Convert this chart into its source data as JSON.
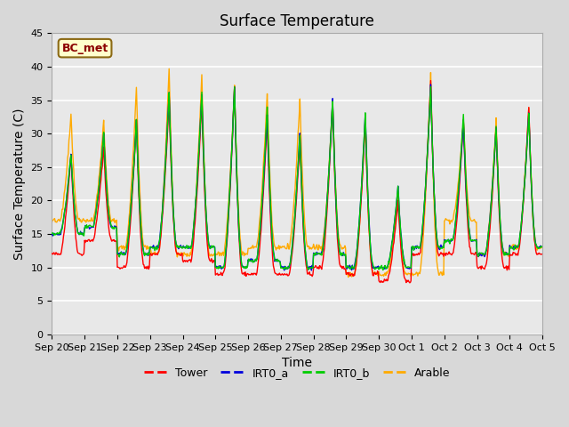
{
  "title": "Surface Temperature",
  "ylabel": "Surface Temperature (C)",
  "xlabel": "Time",
  "annotation": "BC_met",
  "ylim": [
    0,
    45
  ],
  "n_days": 15,
  "xtick_labels": [
    "Sep 20",
    "Sep 21",
    "Sep 22",
    "Sep 23",
    "Sep 24",
    "Sep 25",
    "Sep 26",
    "Sep 27",
    "Sep 28",
    "Sep 29",
    "Sep 30",
    "Oct 1",
    "Oct 2",
    "Oct 3",
    "Oct 4",
    "Oct 5"
  ],
  "ytick_values": [
    0,
    5,
    10,
    15,
    20,
    25,
    30,
    35,
    40,
    45
  ],
  "series_colors": {
    "Tower": "#ff0000",
    "IRT0_a": "#0000dd",
    "IRT0_b": "#00cc00",
    "Arable": "#ffaa00"
  },
  "background_color": "#d8d8d8",
  "plot_bg_color": "#e8e8e8",
  "title_fontsize": 12,
  "axis_label_fontsize": 10,
  "tick_fontsize": 8,
  "line_width": 1.0,
  "day_peaks_tower": [
    27,
    28,
    32,
    35,
    35,
    37,
    32,
    29,
    35,
    32,
    20,
    38,
    32,
    31,
    34
  ],
  "day_mins_tower": [
    12,
    14,
    10,
    12,
    11,
    9,
    9,
    9,
    10,
    9,
    8,
    12,
    12,
    10,
    12
  ],
  "day_peaks_irta": [
    27,
    30,
    32,
    36,
    36,
    37,
    33,
    30,
    35,
    33,
    22,
    37,
    32,
    31,
    33
  ],
  "day_mins_irta": [
    15,
    16,
    12,
    13,
    13,
    10,
    11,
    10,
    12,
    10,
    10,
    13,
    14,
    12,
    13
  ],
  "day_peaks_irtb": [
    27,
    30,
    32,
    36,
    36,
    37,
    34,
    30,
    35,
    33,
    22,
    37,
    33,
    31,
    33
  ],
  "day_mins_irtb": [
    15,
    16,
    12,
    13,
    13,
    10,
    11,
    10,
    12,
    10,
    10,
    13,
    14,
    12,
    13
  ],
  "day_peaks_arable": [
    33,
    32,
    37,
    40,
    39,
    37,
    36,
    35,
    35,
    32,
    21,
    39,
    32,
    32,
    34
  ],
  "day_mins_arable": [
    17,
    17,
    13,
    12,
    12,
    12,
    13,
    13,
    13,
    9,
    9,
    9,
    17,
    12,
    13
  ]
}
